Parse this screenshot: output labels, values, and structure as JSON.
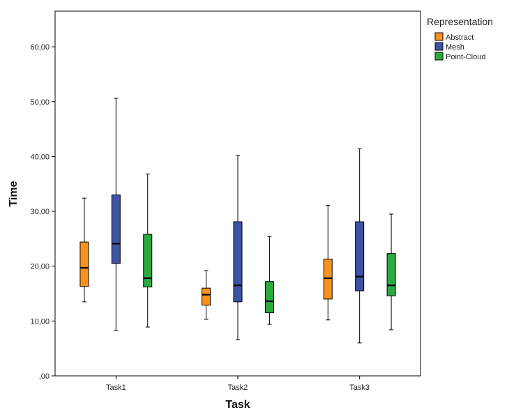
{
  "chart_data": {
    "type": "boxplot",
    "xlabel": "Task",
    "ylabel": "Time",
    "ylim": [
      0,
      66.5
    ],
    "yticks": [
      0,
      10,
      20,
      30,
      40,
      50,
      60
    ],
    "ytick_labels": [
      ",00",
      "10,00",
      "20,00",
      "30,00",
      "40,00",
      "50,00",
      "60,00"
    ],
    "categories": [
      "Task1",
      "Task2",
      "Task3"
    ],
    "legend": {
      "title": "Representation",
      "placement": "top-right-outside"
    },
    "grid": false,
    "series": [
      {
        "name": "Abstract",
        "color": "#f7921e",
        "boxes": [
          {
            "min": 13.5,
            "q1": 16.3,
            "median": 19.7,
            "q3": 24.4,
            "max": 32.4
          },
          {
            "min": 10.3,
            "q1": 12.9,
            "median": 14.8,
            "q3": 16.0,
            "max": 19.2
          },
          {
            "min": 10.2,
            "q1": 14.0,
            "median": 17.8,
            "q3": 21.3,
            "max": 31.1
          }
        ]
      },
      {
        "name": "Mesh",
        "color": "#3e53a4",
        "boxes": [
          {
            "min": 8.3,
            "q1": 20.5,
            "median": 24.1,
            "q3": 33.0,
            "max": 50.6
          },
          {
            "min": 6.6,
            "q1": 13.5,
            "median": 16.5,
            "q3": 28.1,
            "max": 40.2
          },
          {
            "min": 6.0,
            "q1": 15.5,
            "median": 18.1,
            "q3": 28.1,
            "max": 41.4
          }
        ]
      },
      {
        "name": "Point-Cloud",
        "color": "#2aab3f",
        "boxes": [
          {
            "min": 8.9,
            "q1": 16.2,
            "median": 17.8,
            "q3": 25.8,
            "max": 36.8
          },
          {
            "min": 9.4,
            "q1": 11.5,
            "median": 13.6,
            "q3": 17.2,
            "max": 25.4
          },
          {
            "min": 8.4,
            "q1": 14.6,
            "median": 16.5,
            "q3": 22.3,
            "max": 29.5
          }
        ]
      }
    ]
  }
}
